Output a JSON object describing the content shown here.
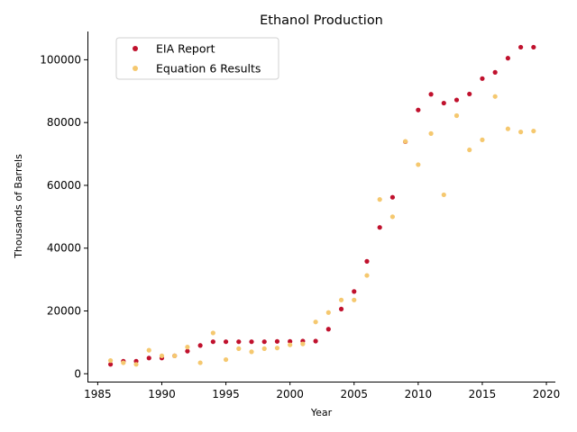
{
  "chart_data": {
    "type": "scatter",
    "title": "Ethanol Production",
    "xlabel": "Year",
    "ylabel": "Thousands of Barrels",
    "xlim": [
      1984.2,
      2020.7
    ],
    "ylim": [
      -2500,
      109000
    ],
    "xticks": [
      1985,
      1990,
      1995,
      2000,
      2005,
      2010,
      2015,
      2020
    ],
    "yticks": [
      0,
      20000,
      40000,
      60000,
      80000,
      100000
    ],
    "grid": false,
    "legend_position": "top-left",
    "series": [
      {
        "name": "EIA Report",
        "color": "#c0112d",
        "points": [
          [
            1986,
            3000
          ],
          [
            1987,
            4000
          ],
          [
            1988,
            4000
          ],
          [
            1989,
            5000
          ],
          [
            1990,
            5000
          ],
          [
            1991,
            5700
          ],
          [
            1992,
            7200
          ],
          [
            1993,
            9000
          ],
          [
            1994,
            10200
          ],
          [
            1995,
            10200
          ],
          [
            1996,
            10200
          ],
          [
            1997,
            10200
          ],
          [
            1998,
            10200
          ],
          [
            1999,
            10300
          ],
          [
            2000,
            10300
          ],
          [
            2001,
            10400
          ],
          [
            2002,
            10400
          ],
          [
            2003,
            14200
          ],
          [
            2004,
            20600
          ],
          [
            2005,
            26200
          ],
          [
            2006,
            35800
          ],
          [
            2007,
            46600
          ],
          [
            2008,
            56200
          ],
          [
            2009,
            73900
          ],
          [
            2010,
            84000
          ],
          [
            2011,
            89000
          ],
          [
            2012,
            86200
          ],
          [
            2013,
            87200
          ],
          [
            2014,
            89100
          ],
          [
            2015,
            94000
          ],
          [
            2016,
            96000
          ],
          [
            2017,
            100500
          ],
          [
            2018,
            104000
          ],
          [
            2019,
            104000
          ]
        ]
      },
      {
        "name": "Equation 6 Results",
        "color": "#f5c86f",
        "points": [
          [
            1986,
            4200
          ],
          [
            1987,
            3500
          ],
          [
            1988,
            3000
          ],
          [
            1989,
            7500
          ],
          [
            1990,
            5700
          ],
          [
            1991,
            5700
          ],
          [
            1992,
            8500
          ],
          [
            1993,
            3500
          ],
          [
            1994,
            13000
          ],
          [
            1995,
            4500
          ],
          [
            1996,
            8000
          ],
          [
            1997,
            7000
          ],
          [
            1998,
            8000
          ],
          [
            1999,
            8200
          ],
          [
            2000,
            9200
          ],
          [
            2001,
            9500
          ],
          [
            2002,
            16500
          ],
          [
            2003,
            19500
          ],
          [
            2004,
            23500
          ],
          [
            2005,
            23500
          ],
          [
            2006,
            31300
          ],
          [
            2007,
            55500
          ],
          [
            2008,
            50000
          ],
          [
            2009,
            74000
          ],
          [
            2010,
            66600
          ],
          [
            2011,
            76500
          ],
          [
            2012,
            57000
          ],
          [
            2013,
            82200
          ],
          [
            2014,
            71300
          ],
          [
            2015,
            74500
          ],
          [
            2016,
            88300
          ],
          [
            2017,
            78000
          ],
          [
            2018,
            77000
          ],
          [
            2019,
            77300
          ]
        ]
      }
    ]
  }
}
